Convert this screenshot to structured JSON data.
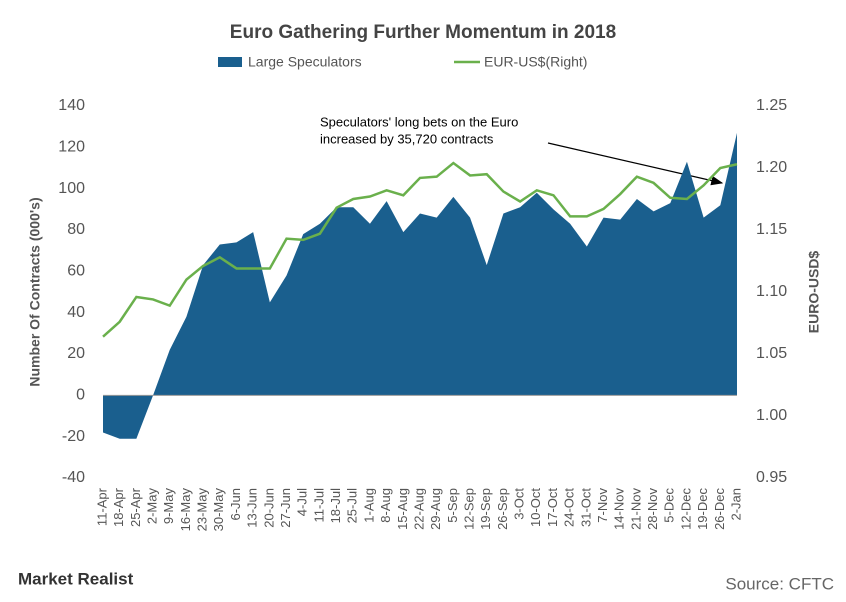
{
  "chart_data": {
    "type": "area-line",
    "title": "Euro Gathering Further Momentum  in 2018",
    "y_label": "Number Of Contracts (000's)",
    "y2_label": "EURO-USD$",
    "annotation": [
      "Speculators' long bets on the Euro",
      "increased by 35,720 contracts"
    ],
    "brand": "Market Realist",
    "source": "Source: CFTC",
    "categories": [
      "11-Apr",
      "18-Apr",
      "25-Apr",
      "2-May",
      "9-May",
      "16-May",
      "23-May",
      "30-May",
      "6-Jun",
      "13-Jun",
      "20-Jun",
      "27-Jun",
      "4-Jul",
      "11-Jul",
      "18-Jul",
      "25-Jul",
      "1-Aug",
      "8-Aug",
      "15-Aug",
      "22-Aug",
      "29-Aug",
      "5-Sep",
      "12-Sep",
      "19-Sep",
      "26-Sep",
      "3-Oct",
      "10-Oct",
      "17-Oct",
      "24-Oct",
      "31-Oct",
      "7-Nov",
      "14-Nov",
      "21-Nov",
      "28-Nov",
      "5-Dec",
      "12-Dec",
      "19-Dec",
      "26-Dec",
      "2-Jan"
    ],
    "series": [
      {
        "name": "Large Speculators",
        "color": "#1a5f8e",
        "axis": "y",
        "kind": "area",
        "values": [
          -18,
          -21,
          -21,
          0,
          22,
          38,
          63,
          73,
          74,
          79,
          45,
          58,
          78,
          83,
          91,
          91,
          83,
          94,
          79,
          88,
          86,
          96,
          86,
          63,
          88,
          91,
          98,
          90,
          83,
          72,
          86,
          85,
          95,
          89,
          93,
          113,
          86,
          92,
          127
        ]
      },
      {
        "name": "EUR-US$(Right)",
        "color": "#6ab04c",
        "axis": "y2",
        "kind": "line",
        "values": [
          1.064,
          1.076,
          1.096,
          1.094,
          1.089,
          1.11,
          1.121,
          1.128,
          1.119,
          1.119,
          1.119,
          1.143,
          1.142,
          1.147,
          1.168,
          1.175,
          1.177,
          1.182,
          1.178,
          1.192,
          1.193,
          1.204,
          1.194,
          1.195,
          1.181,
          1.173,
          1.182,
          1.178,
          1.161,
          1.161,
          1.167,
          1.179,
          1.193,
          1.188,
          1.176,
          1.175,
          1.186,
          1.2,
          1.203
        ]
      }
    ],
    "ylim": [
      -40,
      140
    ],
    "yticks": [
      -40,
      -20,
      0,
      20,
      40,
      60,
      80,
      100,
      120,
      140
    ],
    "y2lim": [
      0.95,
      1.25
    ],
    "y2ticks": [
      {
        "value": 0.95,
        "label": "0.95"
      },
      {
        "value": 1.0,
        "label": "1.00"
      },
      {
        "value": 1.05,
        "label": "1.05"
      },
      {
        "value": 1.1,
        "label": "1.10"
      },
      {
        "value": 1.15,
        "label": "1.15"
      },
      {
        "value": 1.2,
        "label": "1.20"
      },
      {
        "value": 1.25,
        "label": "1.25"
      }
    ],
    "grid": false
  }
}
